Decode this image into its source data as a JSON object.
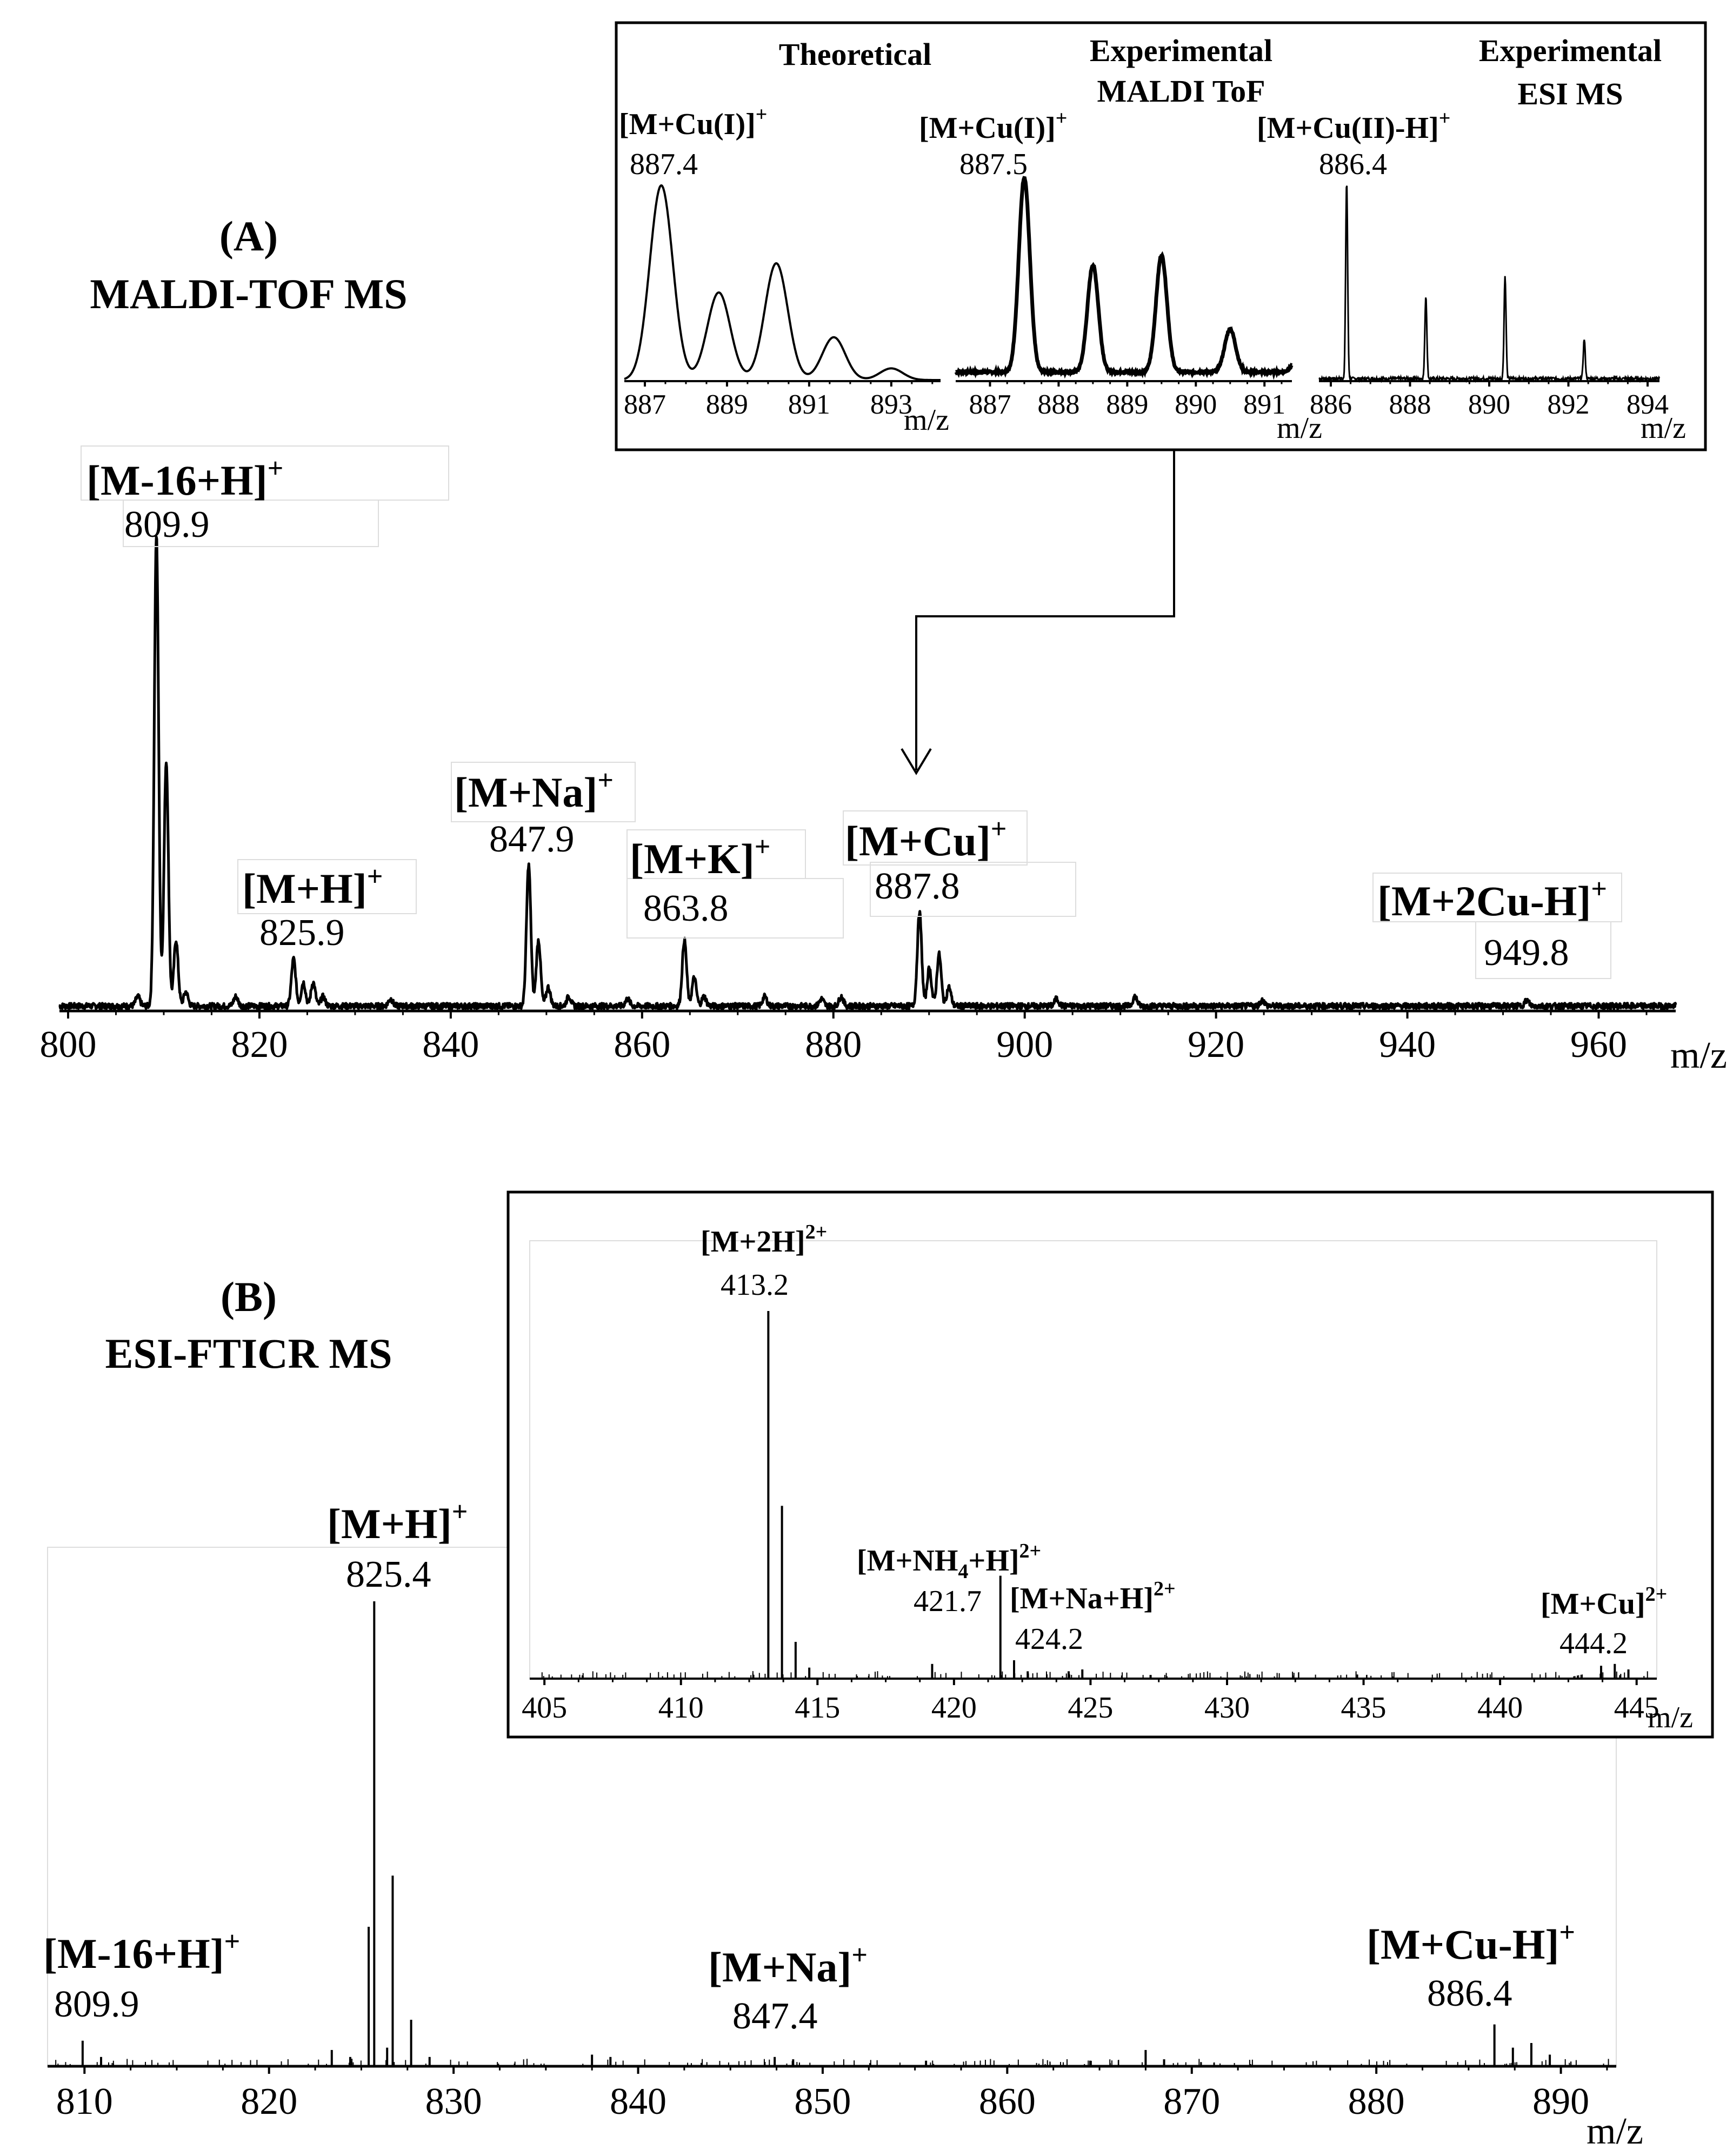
{
  "chart_data": [
    {
      "id": "A",
      "type": "line",
      "panel_label": "(A)",
      "title": "MALDI-TOF MS",
      "xlabel": "m/z",
      "xlim": [
        800,
        965
      ],
      "x_ticks": [
        "800",
        "820",
        "840",
        "860",
        "880",
        "900",
        "920",
        "940",
        "960"
      ],
      "peaks": [
        {
          "x": 808,
          "y": 0.02
        },
        {
          "x": 809.9,
          "y": 1.0
        },
        {
          "x": 810.9,
          "y": 0.52
        },
        {
          "x": 811.9,
          "y": 0.14
        },
        {
          "x": 812.9,
          "y": 0.03
        },
        {
          "x": 818,
          "y": 0.02
        },
        {
          "x": 823.9,
          "y": 0.1
        },
        {
          "x": 824.9,
          "y": 0.05
        },
        {
          "x": 825.9,
          "y": 0.05
        },
        {
          "x": 826.9,
          "y": 0.02
        },
        {
          "x": 833.8,
          "y": 0.015
        },
        {
          "x": 847.9,
          "y": 0.3
        },
        {
          "x": 848.9,
          "y": 0.14
        },
        {
          "x": 849.9,
          "y": 0.04
        },
        {
          "x": 852,
          "y": 0.02
        },
        {
          "x": 858,
          "y": 0.015
        },
        {
          "x": 863.8,
          "y": 0.14
        },
        {
          "x": 864.8,
          "y": 0.06
        },
        {
          "x": 865.8,
          "y": 0.02
        },
        {
          "x": 872,
          "y": 0.02
        },
        {
          "x": 877.8,
          "y": 0.015
        },
        {
          "x": 879.8,
          "y": 0.02
        },
        {
          "x": 887.8,
          "y": 0.2
        },
        {
          "x": 888.8,
          "y": 0.08
        },
        {
          "x": 889.8,
          "y": 0.11
        },
        {
          "x": 890.8,
          "y": 0.04
        },
        {
          "x": 901.8,
          "y": 0.015
        },
        {
          "x": 909.8,
          "y": 0.02
        },
        {
          "x": 922.8,
          "y": 0.012
        },
        {
          "x": 949.8,
          "y": 0.012
        }
      ],
      "annotations": [
        {
          "ion_main": "[M-16+H]",
          "ion_sup": "+",
          "value": "809.9"
        },
        {
          "ion_main": "[M+H]",
          "ion_sup": "+",
          "value": "825.9"
        },
        {
          "ion_main": "[M+Na]",
          "ion_sup": "+",
          "value": "847.9"
        },
        {
          "ion_main": "[M+K]",
          "ion_sup": "+",
          "value": "863.8"
        },
        {
          "ion_main": "[M+Cu]",
          "ion_sup": "+",
          "value": "887.8"
        },
        {
          "ion_main": "[M+2Cu-H]",
          "ion_sup": "+",
          "value": "949.8"
        }
      ]
    },
    {
      "id": "A-inset-theoretical",
      "type": "line",
      "title": "Theoretical",
      "xlabel": "m/z",
      "xlim": [
        886.5,
        894.2
      ],
      "x_ticks": [
        "887",
        "889",
        "891",
        "893"
      ],
      "peaks": [
        {
          "x": 887.4,
          "y": 1.0
        },
        {
          "x": 888.8,
          "y": 0.45
        },
        {
          "x": 890.2,
          "y": 0.6
        },
        {
          "x": 891.6,
          "y": 0.22
        },
        {
          "x": 893.0,
          "y": 0.06
        }
      ],
      "annotation": {
        "ion_main": "[M+Cu(I)]",
        "ion_sup": "+",
        "value": "887.4"
      }
    },
    {
      "id": "A-inset-maldi",
      "type": "line",
      "title_lines": [
        "Experimental",
        "MALDI ToF"
      ],
      "xlabel": "m/z",
      "xlim": [
        886.5,
        891.4
      ],
      "x_ticks": [
        "887",
        "888",
        "889",
        "890",
        "891"
      ],
      "peaks": [
        {
          "x": 887.5,
          "y": 1.0
        },
        {
          "x": 888.5,
          "y": 0.55
        },
        {
          "x": 889.5,
          "y": 0.6
        },
        {
          "x": 890.5,
          "y": 0.22
        },
        {
          "x": 891.5,
          "y": 0.08
        }
      ],
      "annotation": {
        "ion_main": "[M+Cu(I)]",
        "ion_sup": "+",
        "value": "887.5"
      }
    },
    {
      "id": "A-inset-esi",
      "type": "line",
      "title_lines": [
        "Experimental",
        "ESI  MS"
      ],
      "xlabel": "m/z",
      "xlim": [
        885.7,
        894.3
      ],
      "x_ticks": [
        "886",
        "888",
        "890",
        "892",
        "894"
      ],
      "peaks": [
        {
          "x": 886.4,
          "y": 1.0
        },
        {
          "x": 888.4,
          "y": 0.42
        },
        {
          "x": 890.4,
          "y": 0.52
        },
        {
          "x": 892.4,
          "y": 0.2
        },
        {
          "x": 894.4,
          "y": 0.03
        }
      ],
      "annotation": {
        "ion_main": "[M+Cu(II)-H]",
        "ion_sup": "+",
        "value": "886.4"
      }
    },
    {
      "id": "B",
      "type": "bar",
      "panel_label": "(B)",
      "title": "ESI-FTICR MS",
      "xlabel": "m/z",
      "xlim": [
        808,
        893
      ],
      "x_ticks": [
        "810",
        "820",
        "830",
        "840",
        "850",
        "860",
        "870",
        "880",
        "890"
      ],
      "peaks": [
        {
          "x": 809.9,
          "y": 0.055
        },
        {
          "x": 810.9,
          "y": 0.02
        },
        {
          "x": 823.4,
          "y": 0.035
        },
        {
          "x": 824.4,
          "y": 0.02
        },
        {
          "x": 825.4,
          "y": 0.3
        },
        {
          "x": 825.7,
          "y": 1.0
        },
        {
          "x": 826.4,
          "y": 0.04
        },
        {
          "x": 826.7,
          "y": 0.41
        },
        {
          "x": 827.7,
          "y": 0.1
        },
        {
          "x": 828.7,
          "y": 0.02
        },
        {
          "x": 837.5,
          "y": 0.025
        },
        {
          "x": 838.5,
          "y": 0.02
        },
        {
          "x": 847.4,
          "y": 0.02
        },
        {
          "x": 848.4,
          "y": 0.015
        },
        {
          "x": 855.6,
          "y": 0.012
        },
        {
          "x": 864.5,
          "y": 0.012
        },
        {
          "x": 867.5,
          "y": 0.035
        },
        {
          "x": 868.5,
          "y": 0.015
        },
        {
          "x": 886.4,
          "y": 0.09
        },
        {
          "x": 887.4,
          "y": 0.04
        },
        {
          "x": 888.4,
          "y": 0.05
        },
        {
          "x": 889.4,
          "y": 0.025
        }
      ],
      "annotations": [
        {
          "ion_main": "[M-16+H]",
          "ion_sup": "+",
          "value": "809.9"
        },
        {
          "ion_main": "[M+H]",
          "ion_sup": "+",
          "value": "825.4"
        },
        {
          "ion_main": "[M+Na]",
          "ion_sup": "+",
          "value": "847.4"
        },
        {
          "ion_main": "[M+Cu-H]",
          "ion_sup": "+",
          "value": "886.4"
        }
      ]
    },
    {
      "id": "B-inset",
      "type": "bar",
      "xlabel": "m/z",
      "xlim": [
        404.7,
        445.6
      ],
      "x_ticks": [
        "405",
        "410",
        "415",
        "420",
        "425",
        "430",
        "435",
        "440",
        "445"
      ],
      "peaks": [
        {
          "x": 413.2,
          "y": 1.0
        },
        {
          "x": 413.7,
          "y": 0.47
        },
        {
          "x": 414.2,
          "y": 0.1
        },
        {
          "x": 414.7,
          "y": 0.03
        },
        {
          "x": 419.2,
          "y": 0.04
        },
        {
          "x": 421.7,
          "y": 0.28
        },
        {
          "x": 422.2,
          "y": 0.05
        },
        {
          "x": 422.7,
          "y": 0.02
        },
        {
          "x": 424.2,
          "y": 0.02
        },
        {
          "x": 424.7,
          "y": 0.025
        },
        {
          "x": 427.2,
          "y": 0.01
        },
        {
          "x": 443.7,
          "y": 0.035
        },
        {
          "x": 444.2,
          "y": 0.04
        },
        {
          "x": 444.7,
          "y": 0.025
        }
      ],
      "annotations": [
        {
          "ion_main": "[M+2H]",
          "ion_sup": "2+",
          "value": "413.2"
        },
        {
          "ion_main": "[M+NH",
          "ion_sub": "4",
          "ion_main2": "+H]",
          "ion_sup": "2+",
          "value": "421.7"
        },
        {
          "ion_main": "[M+Na+H]",
          "ion_sup": "2+",
          "value": "424.2"
        },
        {
          "ion_main": "[M+Cu]",
          "ion_sup": "2+",
          "value": "444.2"
        }
      ]
    }
  ]
}
